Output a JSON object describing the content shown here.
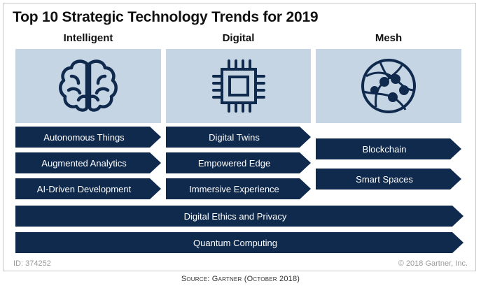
{
  "title": "Top 10 Strategic Technology Trends for 2019",
  "columns": [
    {
      "heading": "Intelligent",
      "icon": "brain-icon"
    },
    {
      "heading": "Digital",
      "icon": "chip-icon"
    },
    {
      "heading": "Mesh",
      "icon": "network-globe-icon"
    }
  ],
  "trends": {
    "intelligent": [
      "Autonomous Things",
      "Augmented Analytics",
      "AI-Driven Development"
    ],
    "digital": [
      "Digital Twins",
      "Empowered Edge",
      "Immersive Experience"
    ],
    "mesh": [
      "Blockchain",
      "Smart Spaces"
    ],
    "span": [
      "Digital Ethics and Privacy",
      "Quantum Computing"
    ]
  },
  "footer": {
    "id": "ID: 374252",
    "copyright": "© 2018 Gartner, Inc.",
    "source": "Source: Gartner (October 2018)"
  },
  "colors": {
    "arrow": "#102a4e",
    "icon_box": "#c5d5e4",
    "icon_stroke": "#102a4e"
  }
}
